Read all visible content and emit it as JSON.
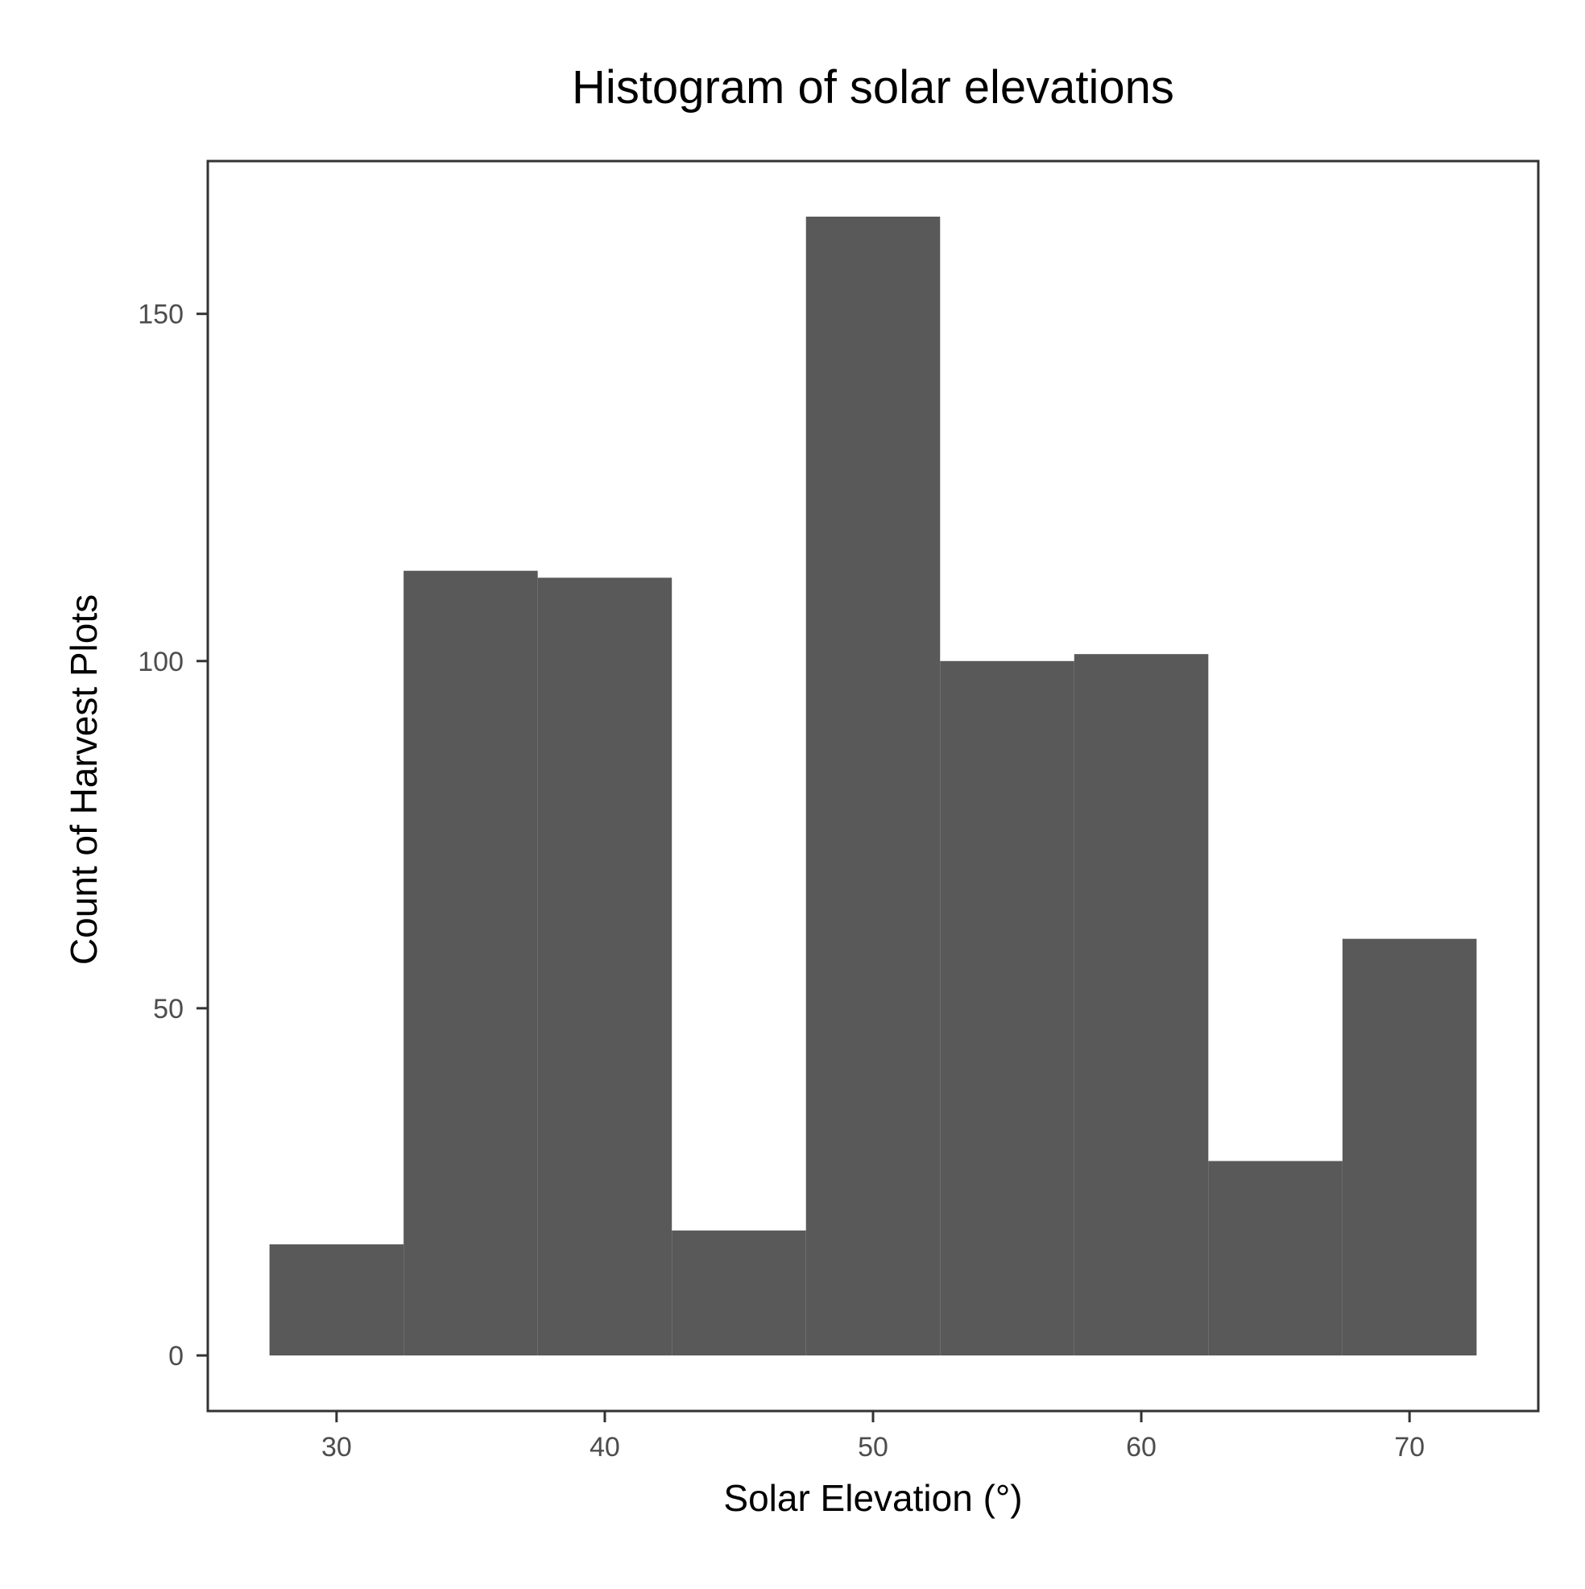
{
  "chart_data": {
    "type": "bar",
    "title": "Histogram of solar elevations",
    "xlabel": "Solar Elevation (°)",
    "ylabel": "Count of Harvest Plots",
    "bin_width": 5,
    "bins": [
      {
        "x0": 27.5,
        "x1": 32.5,
        "count": 16
      },
      {
        "x0": 32.5,
        "x1": 37.5,
        "count": 113
      },
      {
        "x0": 37.5,
        "x1": 42.5,
        "count": 112
      },
      {
        "x0": 42.5,
        "x1": 47.5,
        "count": 18
      },
      {
        "x0": 47.5,
        "x1": 52.5,
        "count": 164
      },
      {
        "x0": 52.5,
        "x1": 57.5,
        "count": 100
      },
      {
        "x0": 57.5,
        "x1": 62.5,
        "count": 101
      },
      {
        "x0": 62.5,
        "x1": 67.5,
        "count": 28
      },
      {
        "x0": 67.5,
        "x1": 72.5,
        "count": 60
      }
    ],
    "xlim": [
      25.2,
      74.8
    ],
    "ylim": [
      -8,
      172
    ],
    "x_ticks": [
      30,
      40,
      50,
      60,
      70
    ],
    "y_ticks": [
      0,
      50,
      100,
      150
    ],
    "bar_color": "#595959",
    "panel_border_color": "#333333",
    "grid": false,
    "legend": "none"
  }
}
